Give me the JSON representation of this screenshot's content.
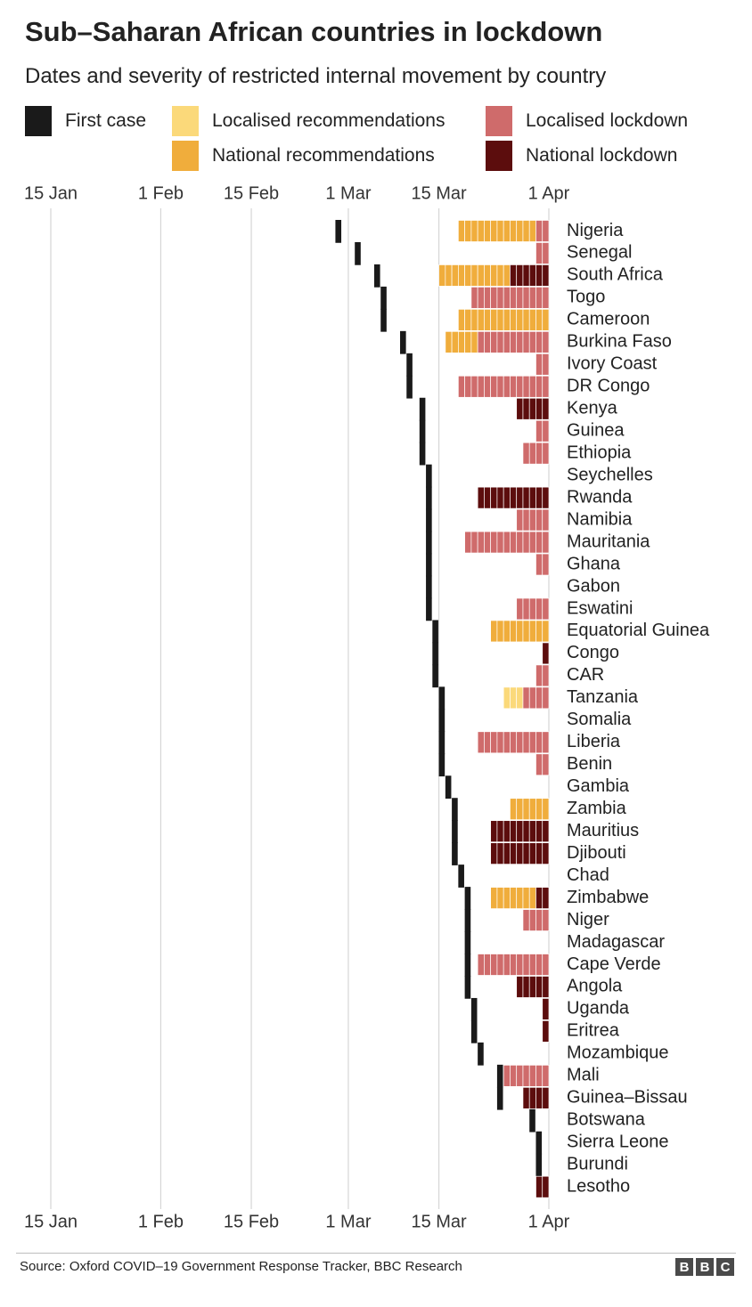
{
  "title": "Sub–Saharan African countries in lockdown",
  "subtitle": "Dates and severity of restricted internal movement by country",
  "legend": [
    {
      "key": "first_case",
      "label": "First case",
      "color": "#1a1a1a"
    },
    {
      "key": "localised_recommendations",
      "label": "Localised recommendations",
      "color": "#fbd97a"
    },
    {
      "key": "localised_lockdown",
      "label": "Localised lockdown",
      "color": "#cf6b6b"
    },
    {
      "key": "national_recommendations",
      "label": "National recommendations",
      "color": "#f0ad3c"
    },
    {
      "key": "national_lockdown",
      "label": "National lockdown",
      "color": "#5c0d0d"
    }
  ],
  "footer": {
    "source": "Source: Oxford COVID–19 Government Response Tracker, BBC Research",
    "logo_letters": [
      "B",
      "B",
      "C"
    ]
  },
  "chart_data": {
    "type": "heatmap",
    "x_axis": {
      "range": [
        "2020-01-15",
        "2020-04-01"
      ],
      "ticks": [
        {
          "date": "2020-01-15",
          "label": "15 Jan"
        },
        {
          "date": "2020-02-01",
          "label": "1 Feb"
        },
        {
          "date": "2020-02-15",
          "label": "15 Feb"
        },
        {
          "date": "2020-03-01",
          "label": "1 Mar"
        },
        {
          "date": "2020-03-15",
          "label": "15 Mar"
        },
        {
          "date": "2020-04-01",
          "label": "1 Apr"
        }
      ]
    },
    "grid": true,
    "legend_position": "top",
    "rows": [
      {
        "country": "Nigeria",
        "first_case": "2020-02-28",
        "segments": [
          [
            "national_recommendations",
            "2020-03-18",
            "2020-03-30"
          ],
          [
            "localised_lockdown",
            "2020-03-30",
            "2020-04-01"
          ]
        ]
      },
      {
        "country": "Senegal",
        "first_case": "2020-03-02",
        "segments": [
          [
            "localised_lockdown",
            "2020-03-30",
            "2020-04-01"
          ]
        ]
      },
      {
        "country": "South Africa",
        "first_case": "2020-03-05",
        "segments": [
          [
            "national_recommendations",
            "2020-03-15",
            "2020-03-26"
          ],
          [
            "national_lockdown",
            "2020-03-26",
            "2020-04-01"
          ]
        ]
      },
      {
        "country": "Togo",
        "first_case": "2020-03-06",
        "segments": [
          [
            "localised_lockdown",
            "2020-03-20",
            "2020-04-01"
          ]
        ]
      },
      {
        "country": "Cameroon",
        "first_case": "2020-03-06",
        "segments": [
          [
            "national_recommendations",
            "2020-03-18",
            "2020-04-01"
          ]
        ]
      },
      {
        "country": "Burkina Faso",
        "first_case": "2020-03-09",
        "segments": [
          [
            "national_recommendations",
            "2020-03-16",
            "2020-03-21"
          ],
          [
            "localised_lockdown",
            "2020-03-21",
            "2020-04-01"
          ]
        ]
      },
      {
        "country": "Ivory Coast",
        "first_case": "2020-03-10",
        "segments": [
          [
            "localised_lockdown",
            "2020-03-30",
            "2020-04-01"
          ]
        ]
      },
      {
        "country": "DR Congo",
        "first_case": "2020-03-10",
        "segments": [
          [
            "localised_lockdown",
            "2020-03-18",
            "2020-04-01"
          ]
        ]
      },
      {
        "country": "Kenya",
        "first_case": "2020-03-12",
        "segments": [
          [
            "national_lockdown",
            "2020-03-27",
            "2020-04-01"
          ]
        ]
      },
      {
        "country": "Guinea",
        "first_case": "2020-03-12",
        "segments": [
          [
            "localised_lockdown",
            "2020-03-30",
            "2020-04-01"
          ]
        ]
      },
      {
        "country": "Ethiopia",
        "first_case": "2020-03-12",
        "segments": [
          [
            "localised_lockdown",
            "2020-03-28",
            "2020-04-01"
          ]
        ]
      },
      {
        "country": "Seychelles",
        "first_case": "2020-03-13",
        "segments": []
      },
      {
        "country": "Rwanda",
        "first_case": "2020-03-13",
        "segments": [
          [
            "national_lockdown",
            "2020-03-21",
            "2020-04-01"
          ]
        ]
      },
      {
        "country": "Namibia",
        "first_case": "2020-03-13",
        "segments": [
          [
            "localised_lockdown",
            "2020-03-27",
            "2020-04-01"
          ]
        ]
      },
      {
        "country": "Mauritania",
        "first_case": "2020-03-13",
        "segments": [
          [
            "localised_lockdown",
            "2020-03-19",
            "2020-04-01"
          ]
        ]
      },
      {
        "country": "Ghana",
        "first_case": "2020-03-13",
        "segments": [
          [
            "localised_lockdown",
            "2020-03-30",
            "2020-04-01"
          ]
        ]
      },
      {
        "country": "Gabon",
        "first_case": "2020-03-13",
        "segments": []
      },
      {
        "country": "Eswatini",
        "first_case": "2020-03-13",
        "segments": [
          [
            "localised_lockdown",
            "2020-03-27",
            "2020-04-01"
          ]
        ]
      },
      {
        "country": "Equatorial Guinea",
        "first_case": "2020-03-14",
        "segments": [
          [
            "national_recommendations",
            "2020-03-23",
            "2020-04-01"
          ]
        ]
      },
      {
        "country": "Congo",
        "first_case": "2020-03-14",
        "segments": [
          [
            "national_lockdown",
            "2020-03-31",
            "2020-04-01"
          ]
        ]
      },
      {
        "country": "CAR",
        "first_case": "2020-03-14",
        "segments": [
          [
            "localised_lockdown",
            "2020-03-30",
            "2020-04-01"
          ]
        ]
      },
      {
        "country": "Tanzania",
        "first_case": "2020-03-15",
        "segments": [
          [
            "localised_recommendations",
            "2020-03-25",
            "2020-03-28"
          ],
          [
            "localised_lockdown",
            "2020-03-28",
            "2020-04-01"
          ]
        ]
      },
      {
        "country": "Somalia",
        "first_case": "2020-03-15",
        "segments": []
      },
      {
        "country": "Liberia",
        "first_case": "2020-03-15",
        "segments": [
          [
            "localised_lockdown",
            "2020-03-21",
            "2020-04-01"
          ]
        ]
      },
      {
        "country": "Benin",
        "first_case": "2020-03-15",
        "segments": [
          [
            "localised_lockdown",
            "2020-03-30",
            "2020-04-01"
          ]
        ]
      },
      {
        "country": "Gambia",
        "first_case": "2020-03-16",
        "segments": []
      },
      {
        "country": "Zambia",
        "first_case": "2020-03-17",
        "segments": [
          [
            "national_recommendations",
            "2020-03-26",
            "2020-04-01"
          ]
        ]
      },
      {
        "country": "Mauritius",
        "first_case": "2020-03-17",
        "segments": [
          [
            "national_lockdown",
            "2020-03-23",
            "2020-04-01"
          ]
        ]
      },
      {
        "country": "Djibouti",
        "first_case": "2020-03-17",
        "segments": [
          [
            "national_lockdown",
            "2020-03-23",
            "2020-04-01"
          ]
        ]
      },
      {
        "country": "Chad",
        "first_case": "2020-03-18",
        "segments": []
      },
      {
        "country": "Zimbabwe",
        "first_case": "2020-03-19",
        "segments": [
          [
            "national_recommendations",
            "2020-03-23",
            "2020-03-30"
          ],
          [
            "national_lockdown",
            "2020-03-30",
            "2020-04-01"
          ]
        ]
      },
      {
        "country": "Niger",
        "first_case": "2020-03-19",
        "segments": [
          [
            "localised_lockdown",
            "2020-03-28",
            "2020-04-01"
          ]
        ]
      },
      {
        "country": "Madagascar",
        "first_case": "2020-03-19",
        "segments": []
      },
      {
        "country": "Cape Verde",
        "first_case": "2020-03-19",
        "segments": [
          [
            "localised_lockdown",
            "2020-03-21",
            "2020-04-01"
          ]
        ]
      },
      {
        "country": "Angola",
        "first_case": "2020-03-19",
        "segments": [
          [
            "national_lockdown",
            "2020-03-27",
            "2020-04-01"
          ]
        ]
      },
      {
        "country": "Uganda",
        "first_case": "2020-03-20",
        "segments": [
          [
            "national_lockdown",
            "2020-03-31",
            "2020-04-01"
          ]
        ]
      },
      {
        "country": "Eritrea",
        "first_case": "2020-03-20",
        "segments": [
          [
            "national_lockdown",
            "2020-03-31",
            "2020-04-01"
          ]
        ]
      },
      {
        "country": "Mozambique",
        "first_case": "2020-03-21",
        "segments": []
      },
      {
        "country": "Mali",
        "first_case": "2020-03-24",
        "segments": [
          [
            "localised_lockdown",
            "2020-03-25",
            "2020-04-01"
          ]
        ]
      },
      {
        "country": "Guinea–Bissau",
        "first_case": "2020-03-24",
        "segments": [
          [
            "national_lockdown",
            "2020-03-28",
            "2020-04-01"
          ]
        ]
      },
      {
        "country": "Botswana",
        "first_case": "2020-03-29",
        "segments": []
      },
      {
        "country": "Sierra Leone",
        "first_case": "2020-03-30",
        "segments": []
      },
      {
        "country": "Burundi",
        "first_case": "2020-03-30",
        "segments": []
      },
      {
        "country": "Lesotho",
        "first_case": null,
        "segments": [
          [
            "national_lockdown",
            "2020-03-30",
            "2020-04-01"
          ]
        ]
      }
    ]
  }
}
